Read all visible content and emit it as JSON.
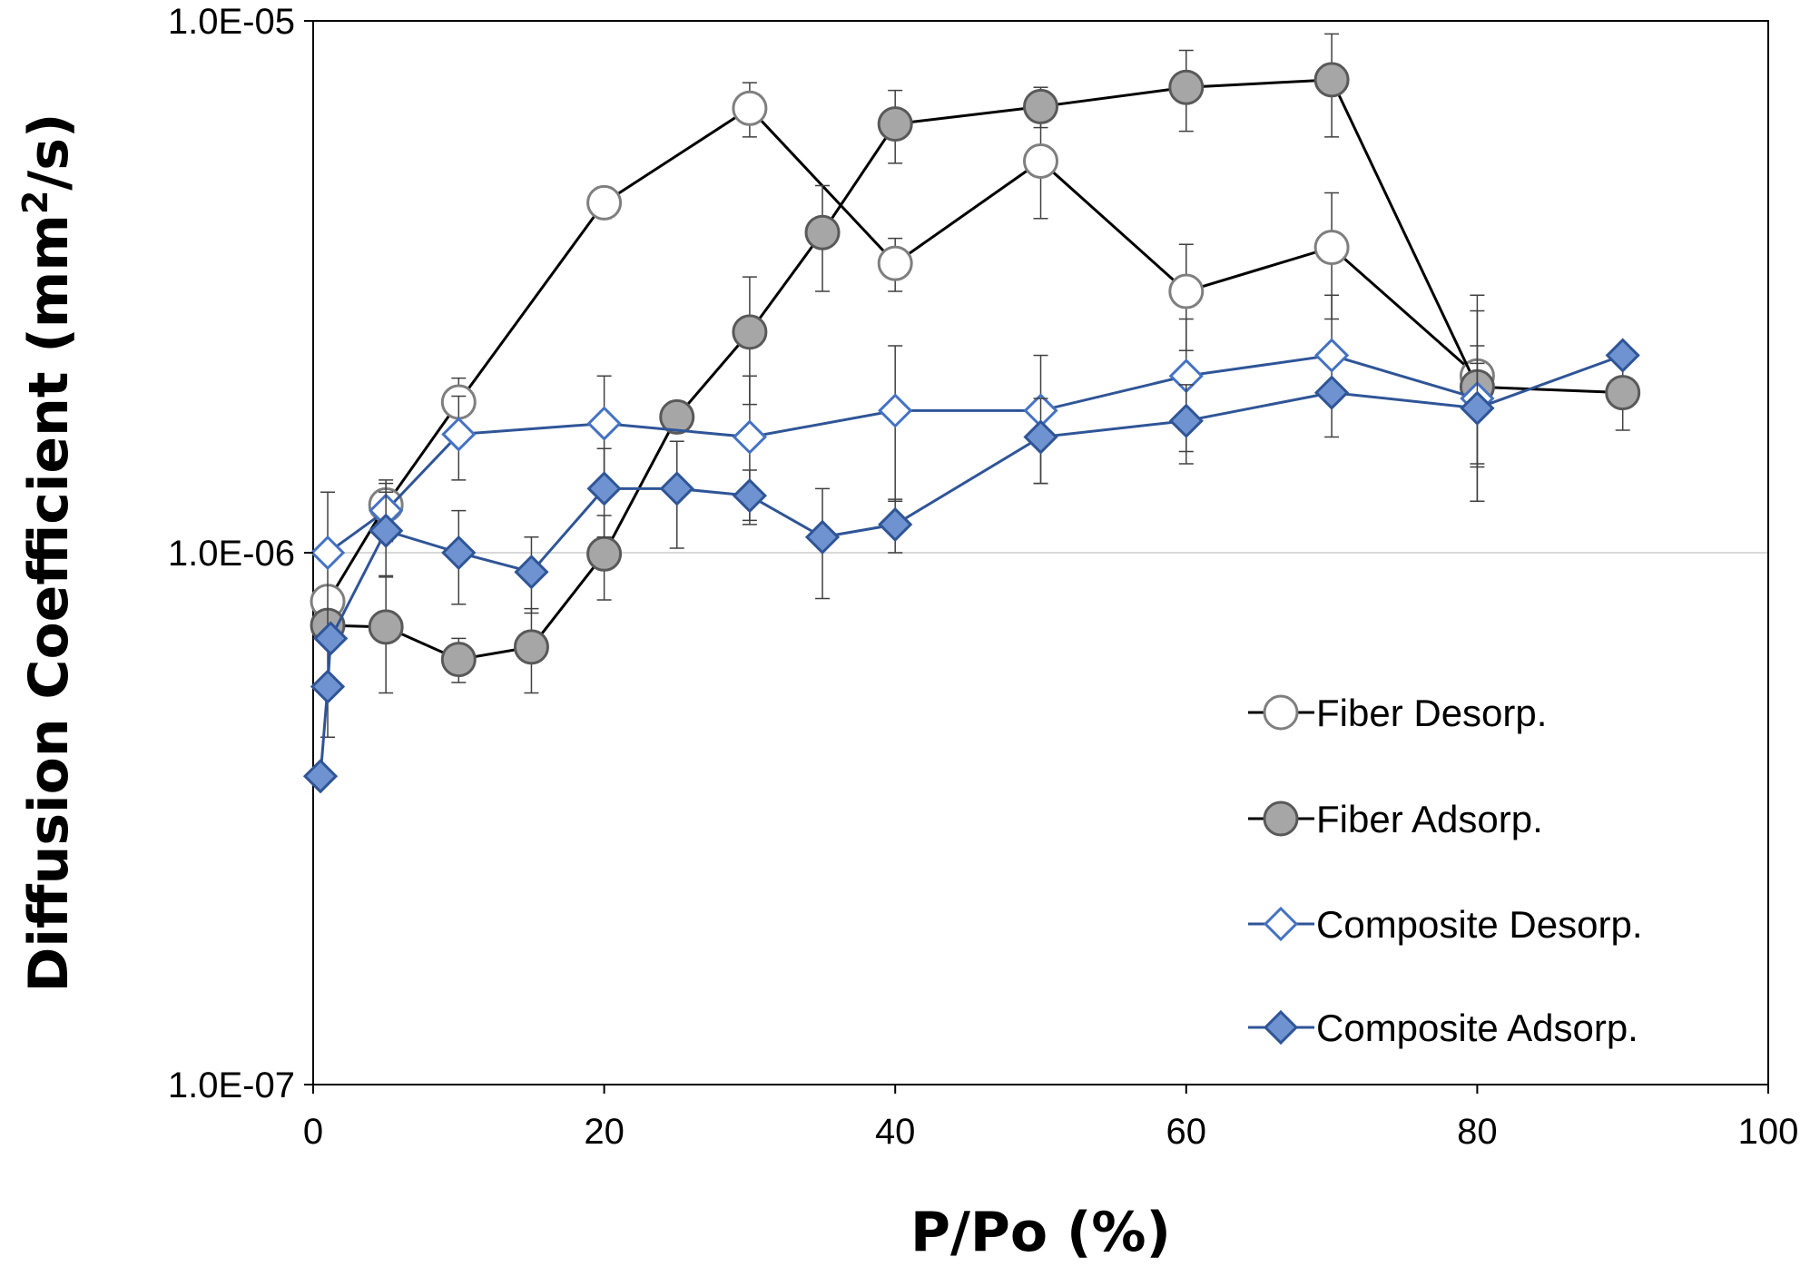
{
  "chart_data": {
    "type": "scatter",
    "x": {
      "label": "P/Po (%)",
      "lim": [
        0,
        100
      ],
      "ticks": [
        0,
        20,
        40,
        60,
        80,
        100
      ],
      "tick_labels": [
        "0",
        "20",
        "40",
        "60",
        "80",
        "100"
      ]
    },
    "y": {
      "label": "Diffusion Coefficient (mm²/s)",
      "label_base": "Diffusion Coefficient (mm",
      "label_sup": "2",
      "label_end": "/s)",
      "scale": "log",
      "lim": [
        1e-07,
        1e-05
      ],
      "ticks": [
        1e-07,
        1e-06,
        1e-05
      ],
      "tick_labels": [
        "1.0E-07",
        "1.0E-06",
        "1.0E-05"
      ]
    },
    "grid": "horizontal at 1.0E-06",
    "legend_position": "lower-right",
    "series": [
      {
        "name": "Fiber Desorp.",
        "marker": "circle",
        "fill": "#ffffff",
        "stroke": "#7f7f7f",
        "line": "#000000",
        "points": [
          {
            "x": 1,
            "y": 8.1e-07,
            "err": 0
          },
          {
            "x": 5,
            "y": 1.23e-06,
            "err": 1.4e-07
          },
          {
            "x": 10,
            "y": 1.92e-06,
            "err": 2.1e-07
          },
          {
            "x": 20,
            "y": 4.55e-06,
            "err": 0
          },
          {
            "x": 30,
            "y": 6.85e-06,
            "err": 8e-07
          },
          {
            "x": 40,
            "y": 3.5e-06,
            "err": 4e-07
          },
          {
            "x": 50,
            "y": 5.45e-06,
            "err": 1.2e-06
          },
          {
            "x": 60,
            "y": 3.1e-06,
            "err": 7e-07
          },
          {
            "x": 70,
            "y": 3.75e-06,
            "err": 1e-06
          },
          {
            "x": 80,
            "y": 2.15e-06,
            "err": 9e-07
          }
        ]
      },
      {
        "name": "Fiber Adsorp.",
        "marker": "circle",
        "fill": "#a6a6a6",
        "stroke": "#595959",
        "line": "#000000",
        "points": [
          {
            "x": 1,
            "y": 7.3e-07,
            "err": 0
          },
          {
            "x": 5,
            "y": 7.25e-07,
            "err": 1.8e-07
          },
          {
            "x": 10,
            "y": 6.3e-07,
            "err": 6e-08
          },
          {
            "x": 15,
            "y": 6.65e-07,
            "err": 1.2e-07
          },
          {
            "x": 20,
            "y": 9.95e-07,
            "err": 1.8e-07
          },
          {
            "x": 25,
            "y": 1.8e-06,
            "err": 0
          },
          {
            "x": 30,
            "y": 2.6e-06,
            "err": 7e-07
          },
          {
            "x": 35,
            "y": 4e-06,
            "err": 9e-07
          },
          {
            "x": 40,
            "y": 6.4e-06,
            "err": 1e-06
          },
          {
            "x": 50,
            "y": 6.9e-06,
            "err": 6e-07
          },
          {
            "x": 60,
            "y": 7.5e-06,
            "err": 1.3e-06
          },
          {
            "x": 70,
            "y": 7.75e-06,
            "err": 1.7e-06
          },
          {
            "x": 80,
            "y": 2.05e-06,
            "err": 8e-07
          },
          {
            "x": 90,
            "y": 2e-06,
            "err": 3e-07
          }
        ]
      },
      {
        "name": "Composite Desorp.",
        "marker": "diamond",
        "fill": "#ffffff",
        "stroke": "#4472c4",
        "line": "#2f5597",
        "points": [
          {
            "x": 1,
            "y": 1e-06,
            "err": 3e-07
          },
          {
            "x": 5,
            "y": 1.2e-06,
            "err": 1.5e-07
          },
          {
            "x": 10,
            "y": 1.67e-06,
            "err": 3e-07
          },
          {
            "x": 20,
            "y": 1.75e-06,
            "err": 4e-07
          },
          {
            "x": 30,
            "y": 1.65e-06,
            "err": 5e-07
          },
          {
            "x": 40,
            "y": 1.85e-06,
            "err": 6e-07
          },
          {
            "x": 50,
            "y": 1.85e-06,
            "err": 5e-07
          },
          {
            "x": 60,
            "y": 2.15e-06,
            "err": 6e-07
          },
          {
            "x": 70,
            "y": 2.35e-06,
            "err": 7e-07
          },
          {
            "x": 80,
            "y": 1.95e-06,
            "err": 5e-07
          }
        ]
      },
      {
        "name": "Composite Adsorp.",
        "marker": "diamond",
        "fill": "#6f93d0",
        "stroke": "#2f5597",
        "line": "#2f5597",
        "points": [
          {
            "x": 0.5,
            "y": 3.8e-07,
            "err": 0
          },
          {
            "x": 1,
            "y": 5.6e-07,
            "err": 1.1e-07
          },
          {
            "x": 1.2,
            "y": 6.9e-07,
            "err": 0
          },
          {
            "x": 5,
            "y": 1.1e-06,
            "err": 2e-07
          },
          {
            "x": 10,
            "y": 1e-06,
            "err": 2e-07
          },
          {
            "x": 15,
            "y": 9.2e-07,
            "err": 1.5e-07
          },
          {
            "x": 20,
            "y": 1.32e-06,
            "err": 2.5e-07
          },
          {
            "x": 25,
            "y": 1.32e-06,
            "err": 3e-07
          },
          {
            "x": 30,
            "y": 1.28e-06,
            "err": 1.5e-07
          },
          {
            "x": 35,
            "y": 1.07e-06,
            "err": 2.5e-07
          },
          {
            "x": 40,
            "y": 1.13e-06,
            "err": 1.3e-07
          },
          {
            "x": 50,
            "y": 1.65e-06,
            "err": 3e-07
          },
          {
            "x": 60,
            "y": 1.77e-06,
            "err": 3e-07
          },
          {
            "x": 70,
            "y": 2e-06,
            "err": 0
          },
          {
            "x": 80,
            "y": 1.87e-06,
            "err": 4e-07
          },
          {
            "x": 90,
            "y": 2.35e-06,
            "err": 0
          }
        ]
      }
    ]
  }
}
